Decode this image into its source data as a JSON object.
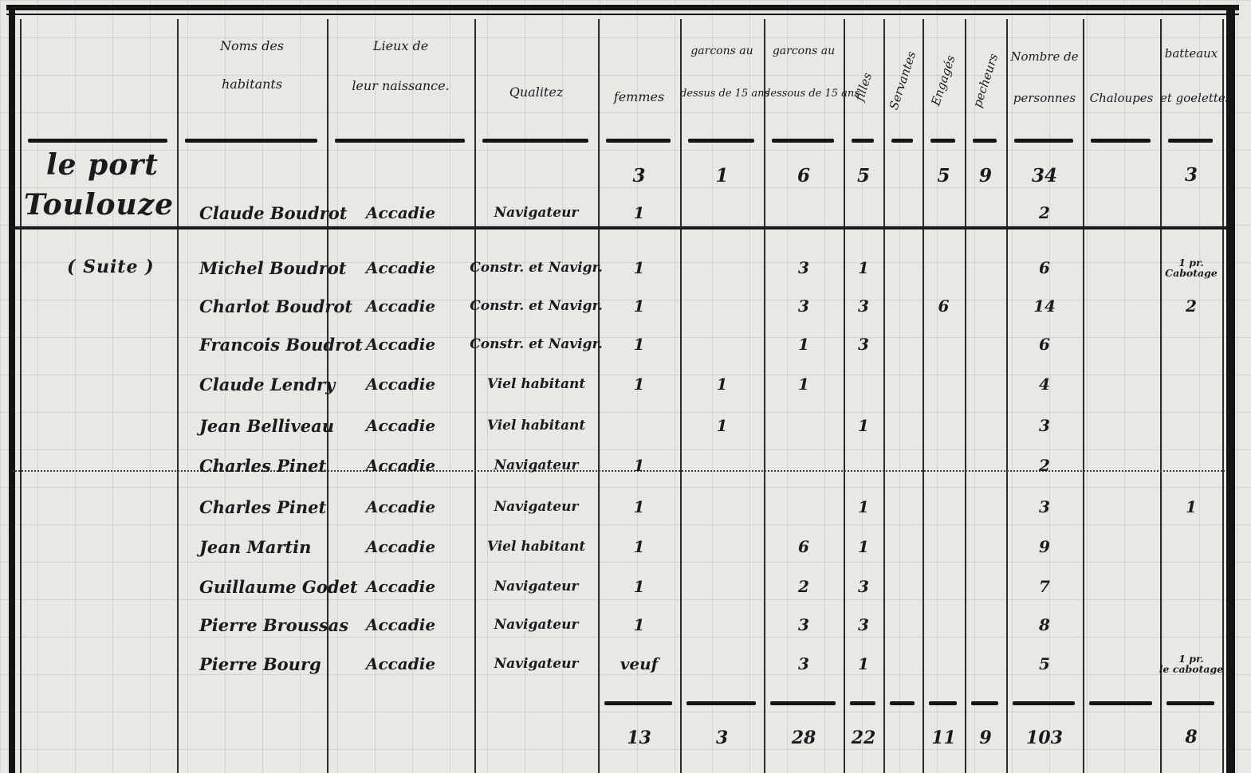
{
  "colors": {
    "ink": "#1b1b1e",
    "paper": "#e9e8e4"
  },
  "locality": {
    "line1": "le port",
    "line2": "Toulouze",
    "suite": "( Suite )"
  },
  "headers": {
    "names_l1": "Noms des",
    "names_l2": "habitants",
    "lieux_l1": "Lieux de",
    "lieux_l2": "leur naissance.",
    "qualitez": "Qualitez",
    "femmes": "femmes",
    "g_over_l1": "garcons au",
    "g_over_l2": "dessus de 15 ans",
    "g_under_l1": "garcons au",
    "g_under_l2": "dessous de 15 ans",
    "filles": "filles",
    "servantes": "Servantes",
    "engages": "Engagés",
    "pecheurs": "pecheurs",
    "personnes_l1": "Nombre de",
    "personnes_l2": "personnes",
    "chaloupes": "Chaloupes",
    "batteaux_l1": "batteaux",
    "batteaux_l2": "et goelettes"
  },
  "rows": [
    {
      "femmes": "3",
      "g_over": "1",
      "g_under": "6",
      "filles": "5",
      "engages": "5",
      "pecheurs": "9",
      "personnes": "34",
      "batteaux": "3"
    },
    {
      "name": "Claude Boudrot",
      "lieu": "Accadie",
      "qualite": "Navigateur",
      "femmes": "1",
      "personnes": "2"
    },
    {
      "name": "Michel Boudrot",
      "lieu": "Accadie",
      "qualite": "Constr. et Navigr.",
      "femmes": "1",
      "g_under": "3",
      "filles": "1",
      "personnes": "6",
      "note_l1": "1 pr.",
      "note_l2": "Cabotage"
    },
    {
      "name": "Charlot Boudrot",
      "lieu": "Accadie",
      "qualite": "Constr. et Navigr.",
      "femmes": "1",
      "g_under": "3",
      "filles": "3",
      "engages": "6",
      "personnes": "14",
      "batteaux": "2"
    },
    {
      "name": "Francois Boudrot",
      "lieu": "Accadie",
      "qualite": "Constr. et Navigr.",
      "femmes": "1",
      "g_under": "1",
      "filles": "3",
      "personnes": "6"
    },
    {
      "name": "Claude Lendry",
      "lieu": "Accadie",
      "qualite": "Viel habitant",
      "femmes": "1",
      "g_over": "1",
      "g_under": "1",
      "personnes": "4"
    },
    {
      "name": "Jean Belliveau",
      "lieu": "Accadie",
      "qualite": "Viel habitant",
      "g_over": "1",
      "filles": "1",
      "personnes": "3"
    },
    {
      "name": "Charles Pinet",
      "lieu": "Accadie",
      "qualite": "Navigateur",
      "femmes": "1",
      "personnes": "2"
    },
    {
      "name": "Charles Pinet",
      "lieu": "Accadie",
      "qualite": "Navigateur",
      "femmes": "1",
      "filles": "1",
      "personnes": "3",
      "batteaux": "1"
    },
    {
      "name": "Jean Martin",
      "lieu": "Accadie",
      "qualite": "Viel habitant",
      "femmes": "1",
      "g_under": "6",
      "filles": "1",
      "personnes": "9"
    },
    {
      "name": "Guillaume Godet",
      "lieu": "Accadie",
      "qualite": "Navigateur",
      "femmes": "1",
      "g_under": "2",
      "filles": "3",
      "personnes": "7"
    },
    {
      "name": "Pierre Broussas",
      "lieu": "Accadie",
      "qualite": "Navigateur",
      "femmes": "1",
      "g_under": "3",
      "filles": "3",
      "personnes": "8"
    },
    {
      "name": "Pierre Bourg",
      "lieu": "Accadie",
      "qualite": "Navigateur",
      "femmes": "veuf",
      "g_under": "3",
      "filles": "1",
      "personnes": "5",
      "note_l1": "1 pr.",
      "note_l2": "le cabotage"
    }
  ],
  "totals": {
    "femmes": "13",
    "g_over": "3",
    "g_under": "28",
    "filles": "22",
    "engages": "11",
    "pecheurs": "9",
    "personnes": "103",
    "batteaux": "8"
  }
}
